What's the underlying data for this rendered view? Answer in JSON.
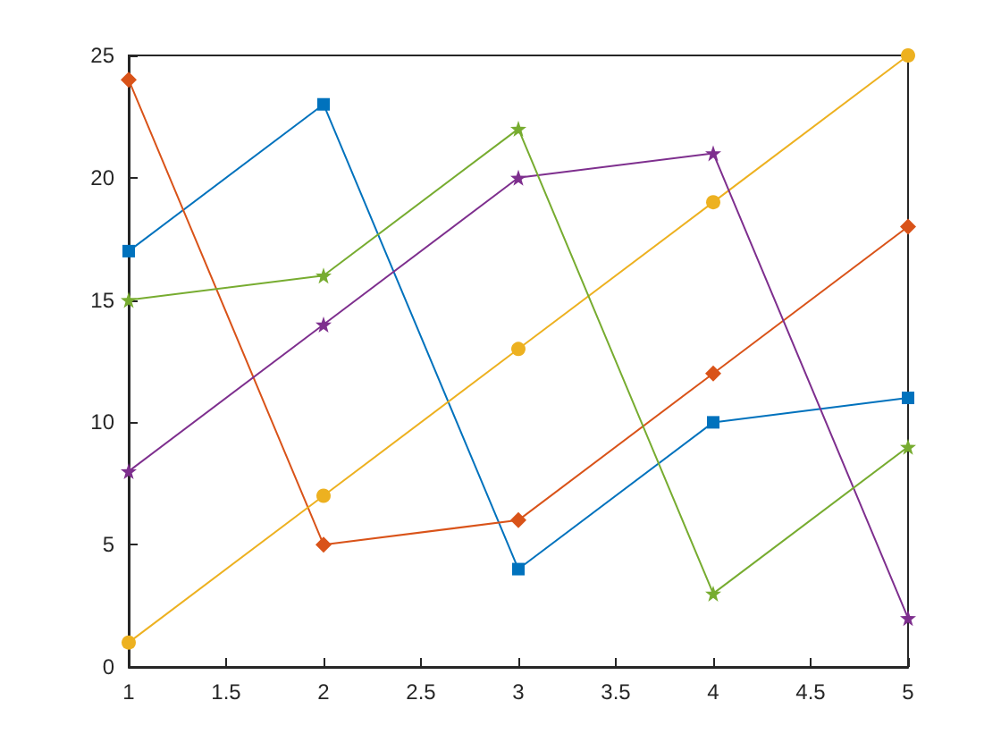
{
  "chart_data": {
    "type": "line",
    "x": [
      1,
      2,
      3,
      4,
      5
    ],
    "series": [
      {
        "color": "#0072bd",
        "marker": "square",
        "values": [
          17,
          23,
          4,
          10,
          11
        ]
      },
      {
        "color": "#d95319",
        "marker": "diamond",
        "values": [
          24,
          5,
          6,
          12,
          18
        ]
      },
      {
        "color": "#edb120",
        "marker": "circle",
        "values": [
          1,
          7,
          13,
          19,
          25
        ]
      },
      {
        "color": "#7e2f8e",
        "marker": "star",
        "values": [
          8,
          14,
          20,
          21,
          2
        ]
      },
      {
        "color": "#77ac30",
        "marker": "star",
        "values": [
          15,
          16,
          22,
          3,
          9
        ]
      }
    ],
    "xlim": [
      1,
      5
    ],
    "xticks": [
      1,
      1.5,
      2,
      2.5,
      3,
      3.5,
      4,
      4.5,
      5
    ],
    "ylim": [
      0,
      25
    ],
    "yticks": [
      0,
      5,
      10,
      15,
      20,
      25
    ],
    "line_style": "solid"
  }
}
